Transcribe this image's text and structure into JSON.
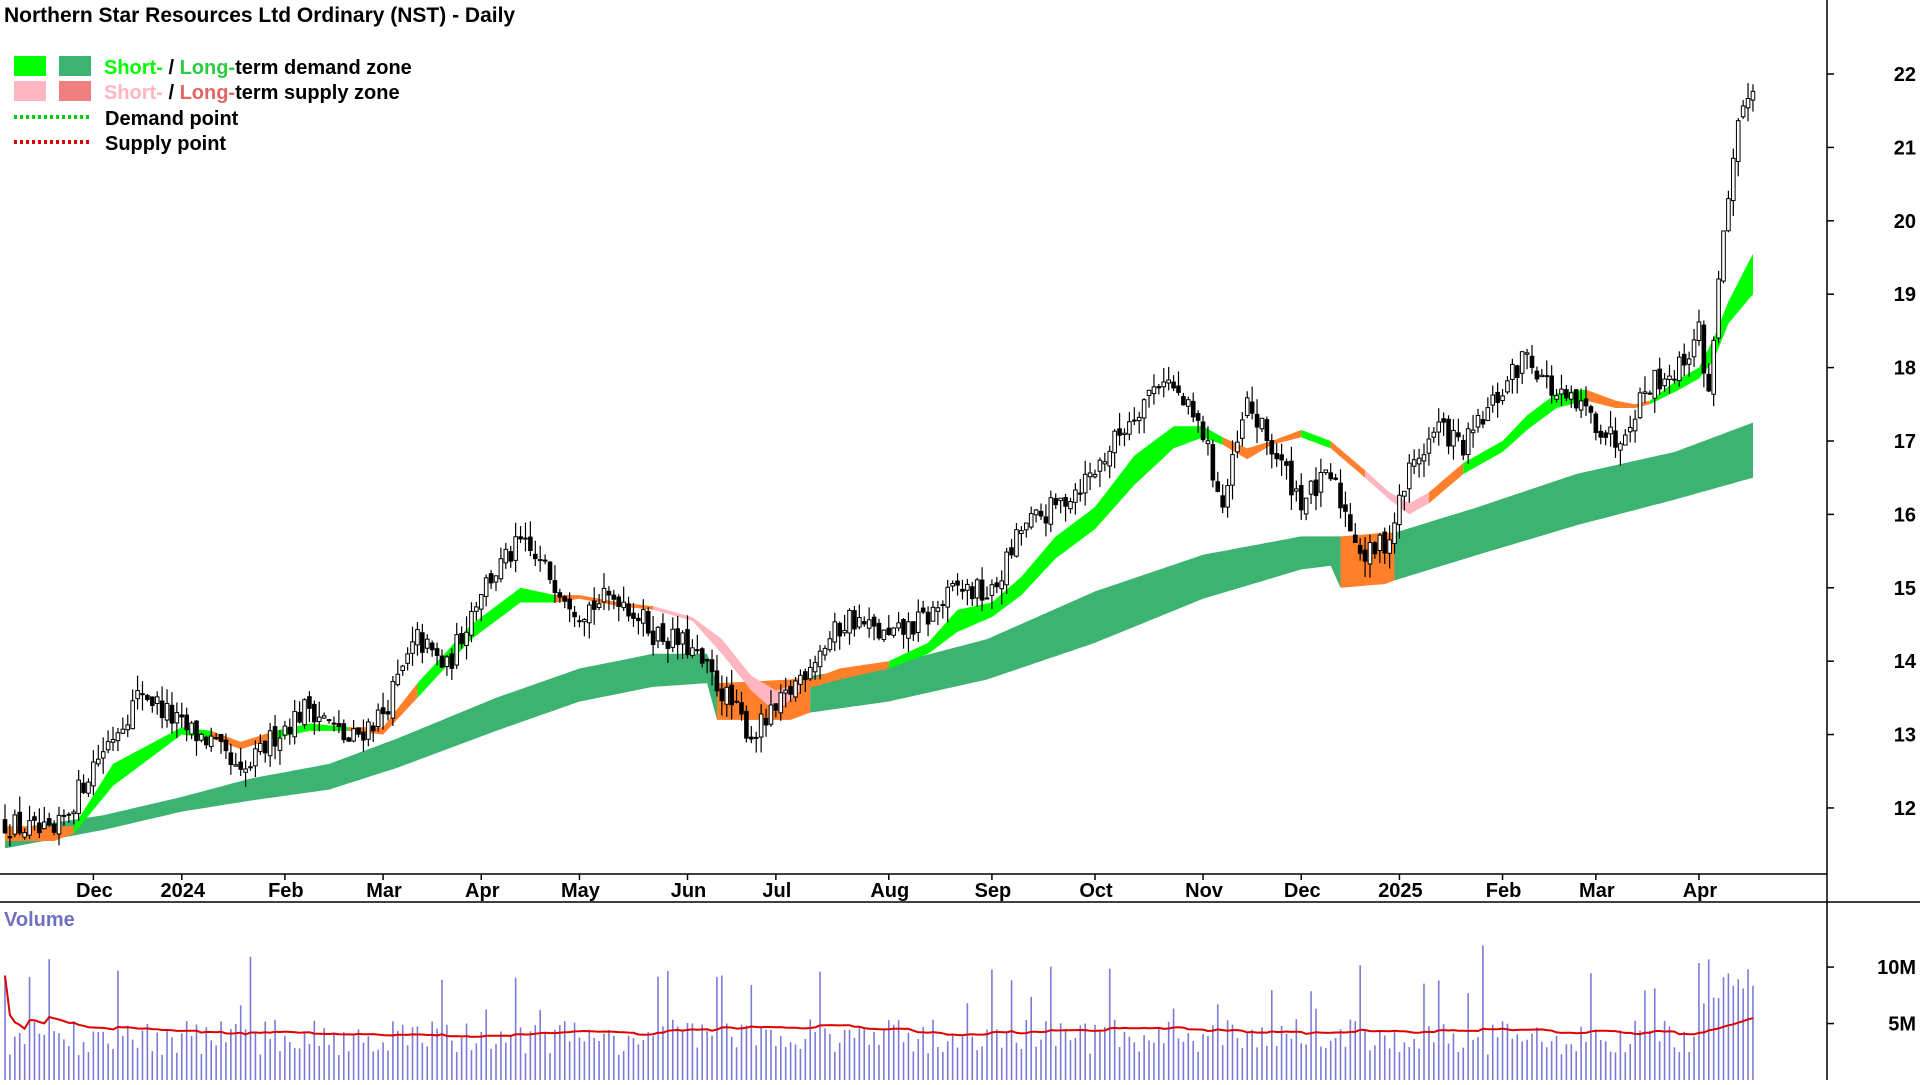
{
  "chart_data": {
    "type": "candlestick",
    "title": "Northern Star Resources Ltd Ordinary (NST) - Daily",
    "legend": [
      {
        "label_a": "Short-",
        "sep": " / ",
        "label_b": "Long-",
        "rest": "term demand zone",
        "colors": [
          "#00ff00",
          "#3cb371"
        ],
        "style": "swatch"
      },
      {
        "label_a": "Short-",
        "sep": " / ",
        "label_b": "Long-",
        "rest": "term supply zone",
        "colors": [
          "#ffb6c1",
          "#f08080"
        ],
        "style": "swatch"
      },
      {
        "label": "Demand point",
        "color": "#00cc00",
        "style": "dotted"
      },
      {
        "label": "Supply point",
        "color": "#dd0000",
        "style": "dotted"
      }
    ],
    "legend_position": "top-left",
    "x_tick_labels": [
      "Dec",
      "2024",
      "Feb",
      "Mar",
      "Apr",
      "May",
      "Jun",
      "Jul",
      "Aug",
      "Sep",
      "Oct",
      "Nov",
      "Dec",
      "2025",
      "Feb",
      "Mar",
      "Apr"
    ],
    "x_tick_index": [
      18,
      36,
      57,
      77,
      97,
      117,
      139,
      157,
      180,
      201,
      222,
      244,
      264,
      284,
      305,
      324,
      345
    ],
    "y_axis": {
      "ticks": [
        12,
        13,
        14,
        15,
        16,
        17,
        18,
        19,
        20,
        21,
        22
      ],
      "range": [
        11.1,
        22.6
      ],
      "position": "right"
    },
    "volume_panel": {
      "label": "Volume",
      "ticks": [
        "5M",
        "10M"
      ],
      "tick_values": [
        5,
        10
      ],
      "range": [
        0,
        15.5
      ],
      "ma_color": "#dd0000",
      "bar_color": "#7b7bd6"
    },
    "price_anchors": [
      [
        0,
        11.8
      ],
      [
        10,
        11.6
      ],
      [
        18,
        12.6
      ],
      [
        28,
        13.6
      ],
      [
        36,
        13.1
      ],
      [
        42,
        12.9
      ],
      [
        48,
        12.4
      ],
      [
        55,
        13.0
      ],
      [
        62,
        13.4
      ],
      [
        70,
        12.9
      ],
      [
        77,
        13.3
      ],
      [
        84,
        14.3
      ],
      [
        90,
        13.9
      ],
      [
        97,
        15.0
      ],
      [
        105,
        15.6
      ],
      [
        112,
        15.1
      ],
      [
        117,
        14.7
      ],
      [
        125,
        14.9
      ],
      [
        132,
        14.4
      ],
      [
        139,
        14.2
      ],
      [
        146,
        13.6
      ],
      [
        152,
        13.0
      ],
      [
        157,
        13.3
      ],
      [
        164,
        14.0
      ],
      [
        172,
        14.6
      ],
      [
        180,
        14.3
      ],
      [
        188,
        14.6
      ],
      [
        194,
        15.0
      ],
      [
        201,
        14.9
      ],
      [
        207,
        15.8
      ],
      [
        214,
        16.1
      ],
      [
        222,
        16.6
      ],
      [
        230,
        17.4
      ],
      [
        236,
        17.9
      ],
      [
        244,
        17.1
      ],
      [
        248,
        16.1
      ],
      [
        253,
        17.5
      ],
      [
        258,
        16.9
      ],
      [
        264,
        16.2
      ],
      [
        270,
        16.5
      ],
      [
        277,
        15.4
      ],
      [
        282,
        15.7
      ],
      [
        286,
        16.6
      ],
      [
        292,
        17.2
      ],
      [
        297,
        16.9
      ],
      [
        305,
        17.7
      ],
      [
        310,
        18.2
      ],
      [
        316,
        17.6
      ],
      [
        322,
        17.4
      ],
      [
        328,
        17.0
      ],
      [
        335,
        17.8
      ],
      [
        341,
        18.0
      ],
      [
        345,
        18.5
      ],
      [
        347,
        17.6
      ],
      [
        349,
        19.3
      ],
      [
        351,
        20.2
      ],
      [
        353,
        21.2
      ],
      [
        356,
        21.9
      ]
    ],
    "short_zone_anchors": [
      [
        0,
        11.55,
        11.75,
        "s"
      ],
      [
        10,
        11.55,
        11.75,
        "s"
      ],
      [
        14,
        11.65,
        11.75,
        "d"
      ],
      [
        22,
        12.3,
        12.6,
        "d"
      ],
      [
        36,
        13.0,
        13.1,
        "d"
      ],
      [
        42,
        12.95,
        13.05,
        "s"
      ],
      [
        48,
        12.8,
        12.9,
        "s"
      ],
      [
        55,
        12.95,
        13.05,
        "d"
      ],
      [
        62,
        13.05,
        13.15,
        "d"
      ],
      [
        70,
        13.05,
        13.1,
        "s"
      ],
      [
        77,
        13.0,
        13.1,
        "s"
      ],
      [
        84,
        13.5,
        13.7,
        "d"
      ],
      [
        95,
        14.3,
        14.5,
        "d"
      ],
      [
        105,
        14.8,
        15.0,
        "d"
      ],
      [
        112,
        14.8,
        14.9,
        "s"
      ],
      [
        117,
        14.85,
        14.9,
        "s"
      ],
      [
        125,
        14.75,
        14.8,
        "s"
      ],
      [
        132,
        14.7,
        14.75,
        "pink"
      ],
      [
        140,
        14.55,
        14.6,
        "pink"
      ],
      [
        146,
        14.1,
        14.3,
        "pink"
      ],
      [
        152,
        13.6,
        13.8,
        "pink"
      ],
      [
        157,
        13.3,
        13.6,
        "pink"
      ],
      [
        162,
        13.6,
        13.7,
        "s"
      ],
      [
        170,
        13.75,
        13.9,
        "s"
      ],
      [
        180,
        13.9,
        14.0,
        "d"
      ],
      [
        188,
        14.1,
        14.25,
        "d"
      ],
      [
        194,
        14.4,
        14.7,
        "d"
      ],
      [
        201,
        14.6,
        14.8,
        "d"
      ],
      [
        207,
        14.9,
        15.15,
        "d"
      ],
      [
        214,
        15.4,
        15.7,
        "d"
      ],
      [
        222,
        15.8,
        16.1,
        "d"
      ],
      [
        230,
        16.4,
        16.8,
        "d"
      ],
      [
        238,
        16.9,
        17.2,
        "d"
      ],
      [
        244,
        17.05,
        17.2,
        "d"
      ],
      [
        248,
        16.95,
        17.05,
        "s"
      ],
      [
        253,
        16.75,
        16.9,
        "s"
      ],
      [
        258,
        16.95,
        17.0,
        "s"
      ],
      [
        264,
        17.05,
        17.15,
        "d"
      ],
      [
        270,
        16.9,
        17.0,
        "s"
      ],
      [
        277,
        16.5,
        16.6,
        "pink"
      ],
      [
        282,
        16.2,
        16.3,
        "pink"
      ],
      [
        286,
        16.0,
        16.15,
        "pink"
      ],
      [
        290,
        16.15,
        16.3,
        "s"
      ],
      [
        297,
        16.55,
        16.7,
        "d"
      ],
      [
        305,
        16.85,
        17.0,
        "d"
      ],
      [
        310,
        17.15,
        17.35,
        "d"
      ],
      [
        316,
        17.45,
        17.65,
        "d"
      ],
      [
        322,
        17.55,
        17.7,
        "s"
      ],
      [
        328,
        17.45,
        17.55,
        "s"
      ],
      [
        332,
        17.45,
        17.5,
        "s"
      ],
      [
        335,
        17.5,
        17.55,
        "d"
      ],
      [
        341,
        17.7,
        17.85,
        "d"
      ],
      [
        345,
        17.85,
        18.0,
        "d"
      ],
      [
        348,
        18.1,
        18.4,
        "d"
      ],
      [
        351,
        18.6,
        18.9,
        "d"
      ],
      [
        356,
        19.0,
        19.55,
        "d"
      ]
    ],
    "long_zone_anchors": [
      [
        0,
        11.45,
        11.7,
        "d"
      ],
      [
        20,
        11.7,
        11.9,
        "d"
      ],
      [
        36,
        11.95,
        12.15,
        "d"
      ],
      [
        50,
        12.1,
        12.4,
        "d"
      ],
      [
        66,
        12.25,
        12.6,
        "d"
      ],
      [
        80,
        12.55,
        12.95,
        "d"
      ],
      [
        100,
        13.05,
        13.5,
        "d"
      ],
      [
        117,
        13.45,
        13.9,
        "d"
      ],
      [
        132,
        13.65,
        14.1,
        "d"
      ],
      [
        143,
        13.7,
        14.1,
        "d"
      ],
      [
        145,
        13.2,
        13.7,
        "s"
      ],
      [
        160,
        13.2,
        13.75,
        "s"
      ],
      [
        164,
        13.3,
        13.8,
        "d"
      ],
      [
        180,
        13.45,
        13.95,
        "d"
      ],
      [
        200,
        13.75,
        14.3,
        "d"
      ],
      [
        222,
        14.25,
        14.95,
        "d"
      ],
      [
        244,
        14.85,
        15.45,
        "d"
      ],
      [
        264,
        15.25,
        15.7,
        "d"
      ],
      [
        270,
        15.3,
        15.7,
        "d"
      ],
      [
        272,
        15.0,
        15.7,
        "s"
      ],
      [
        281,
        15.05,
        15.75,
        "s"
      ],
      [
        283,
        15.1,
        15.75,
        "d"
      ],
      [
        300,
        15.45,
        16.1,
        "d"
      ],
      [
        320,
        15.85,
        16.55,
        "d"
      ],
      [
        340,
        16.2,
        16.85,
        "d"
      ],
      [
        356,
        16.5,
        17.25,
        "d"
      ]
    ],
    "n_bars": 357
  }
}
